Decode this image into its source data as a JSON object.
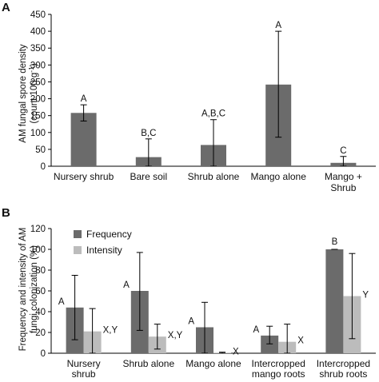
{
  "chart_data": [
    {
      "panel": "A",
      "type": "bar",
      "ylabel_line1": "AM fungal spore density",
      "ylabel_line2": "(count 100 g",
      "ylabel_sup": "-1",
      "ylabel_close": ")",
      "ylim": [
        0,
        450
      ],
      "yticks": [
        "0",
        "50",
        "100",
        "150",
        "200",
        "250",
        "300",
        "350",
        "400",
        "450"
      ],
      "categories": [
        [
          "Nursery shrub"
        ],
        [
          "Bare soil"
        ],
        [
          "Shrub alone"
        ],
        [
          "Mango alone"
        ],
        [
          "Mango +",
          "Shrub"
        ]
      ],
      "values": [
        158,
        27,
        63,
        242,
        10
      ],
      "error_low": [
        134,
        -27,
        -7,
        86,
        -7
      ],
      "error_high": [
        182,
        81,
        138,
        400,
        29
      ],
      "labels": [
        "A",
        "B,C",
        "A,B,C",
        "A",
        "C"
      ],
      "color": "#6b6b6b"
    },
    {
      "panel": "B",
      "type": "bar",
      "ylabel_line1": "Frequency and intensity of AM",
      "ylabel_line2": "fungi colonization (%)",
      "ylim": [
        0,
        120
      ],
      "yticks": [
        "0",
        "20",
        "40",
        "60",
        "80",
        "100",
        "120"
      ],
      "categories": [
        [
          "Nursery",
          "shrub"
        ],
        [
          "Shrub alone"
        ],
        [
          "Mango alone"
        ],
        [
          "Intercropped",
          "mango roots"
        ],
        [
          "Intercropped",
          "shrub roots"
        ]
      ],
      "series": [
        {
          "name": "Frequency",
          "color": "#6b6b6b",
          "values": [
            44,
            60,
            25,
            17,
            100
          ],
          "error_low": [
            13,
            22,
            0,
            9,
            100
          ],
          "error_high": [
            75,
            97,
            49,
            26,
            100
          ],
          "labels": [
            "A",
            "A",
            "A",
            "A",
            "B"
          ]
        },
        {
          "name": "Intensity",
          "color": "#bcbcbc",
          "values": [
            21,
            16,
            0.5,
            11,
            55
          ],
          "error_low": [
            -1,
            4,
            0,
            -6,
            14
          ],
          "error_high": [
            43,
            28,
            1,
            28,
            96
          ],
          "labels": [
            "X,Y",
            "X,Y",
            "X",
            "X",
            "Y"
          ]
        }
      ],
      "legend": "top-left"
    }
  ]
}
